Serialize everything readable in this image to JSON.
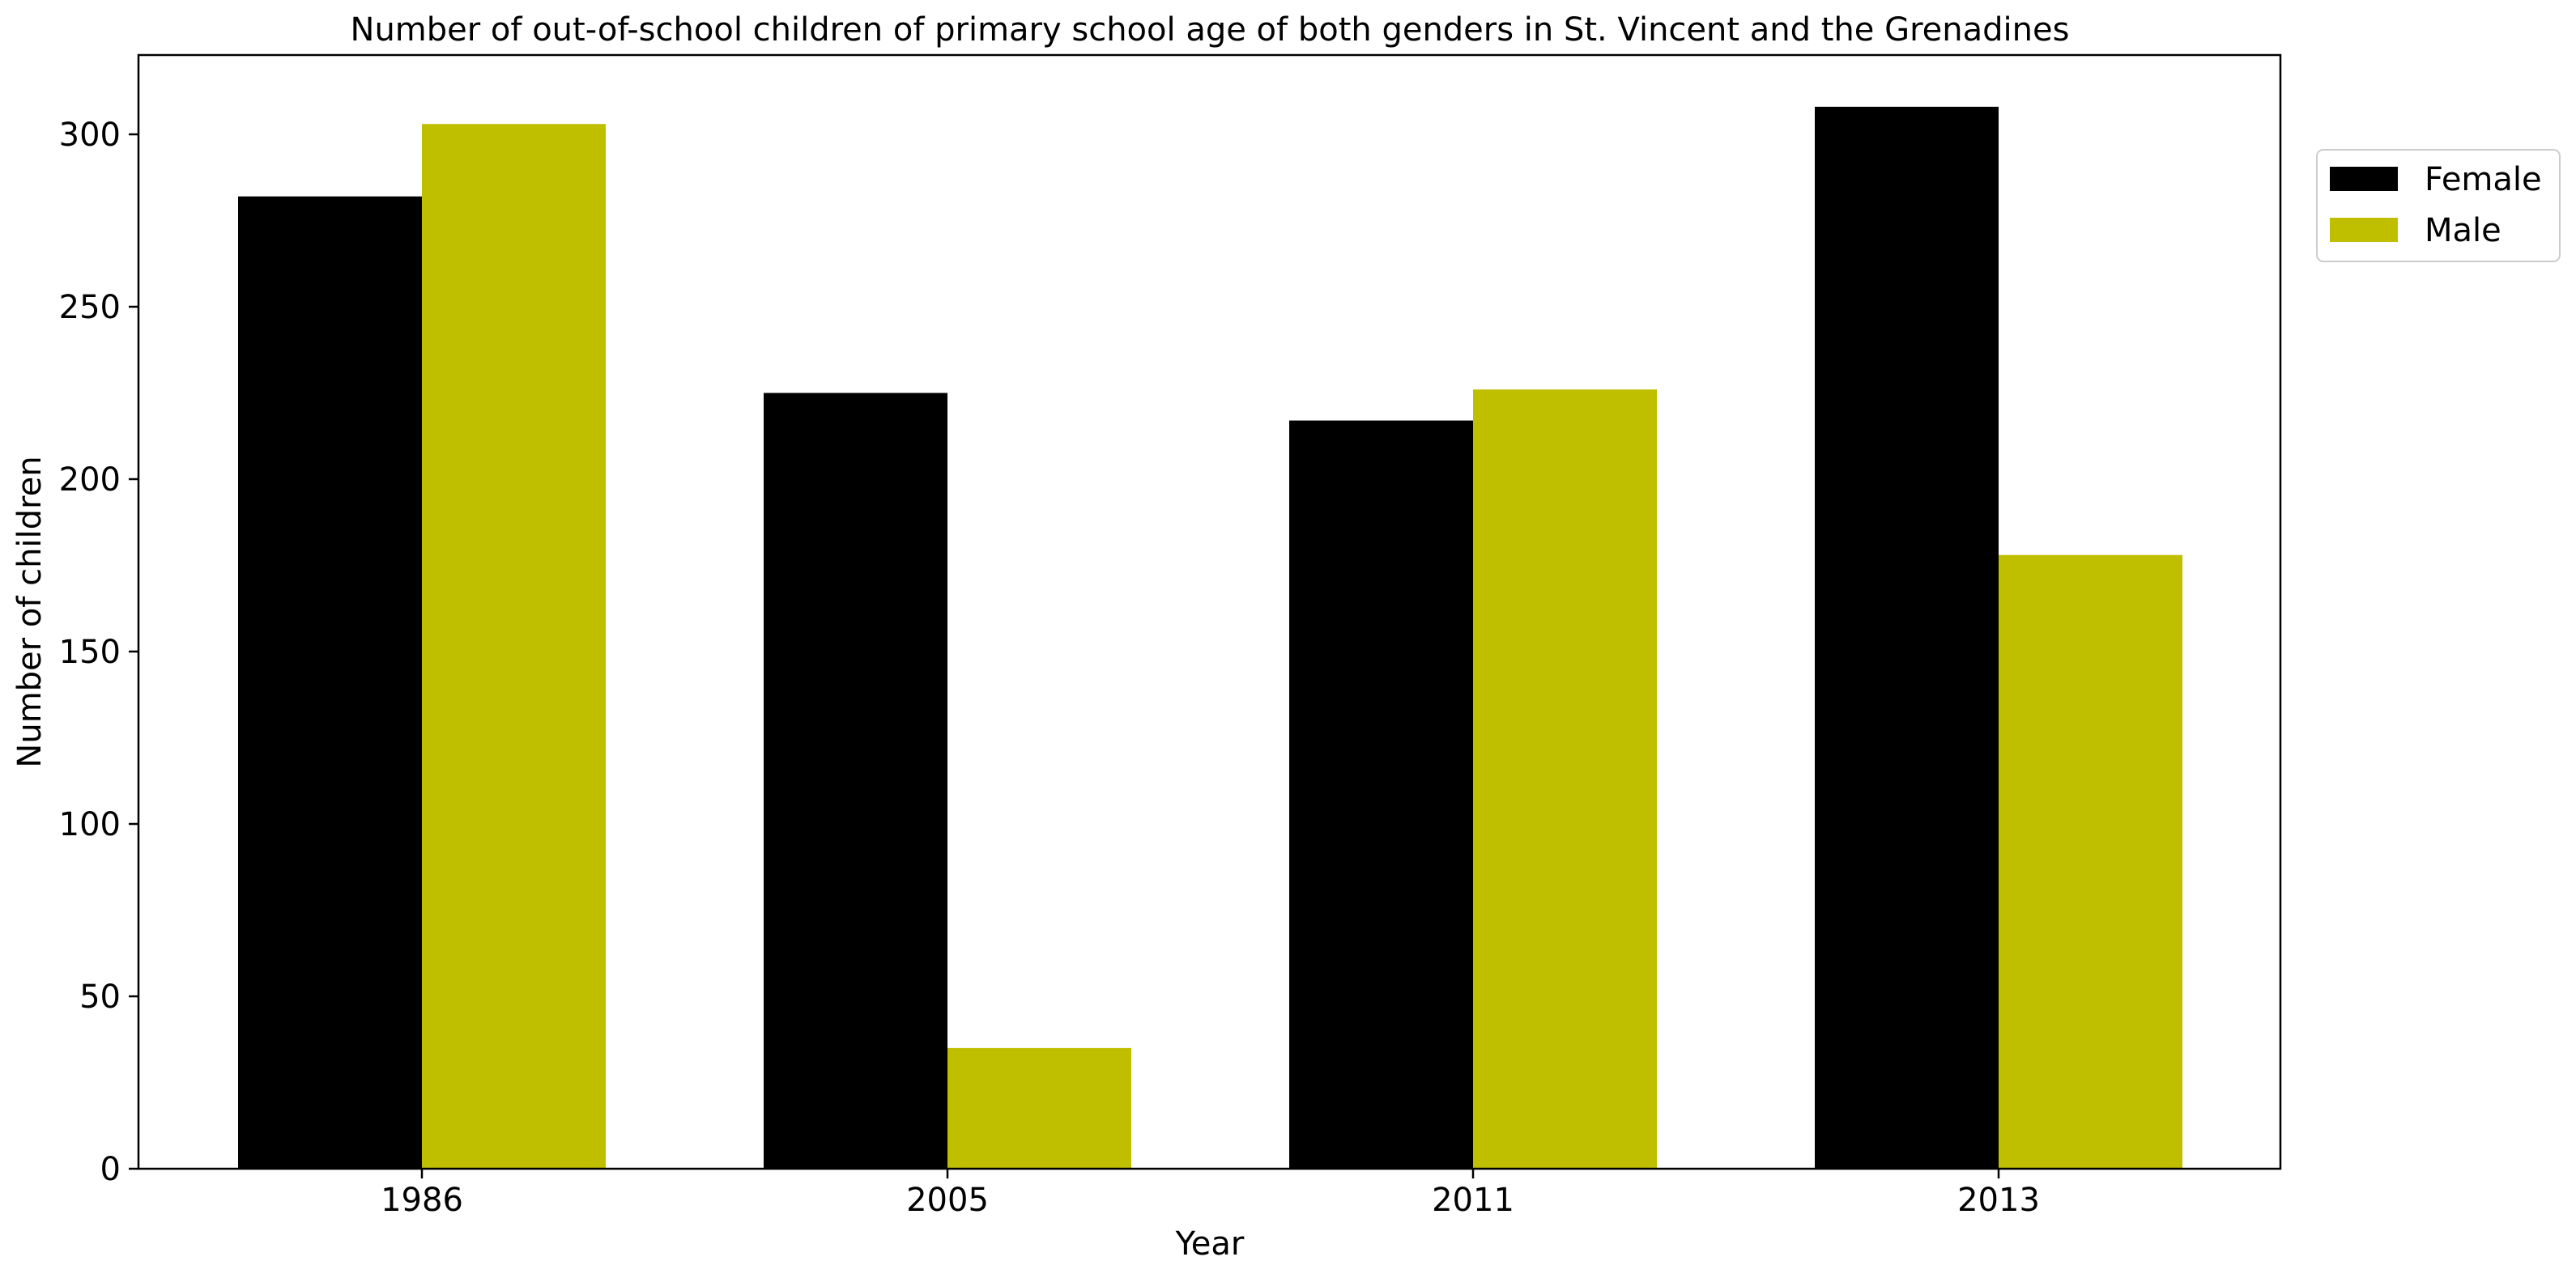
{
  "chart_data": {
    "type": "bar",
    "title": "Number of out-of-school children of primary school age of both genders in St. Vincent and the Grenadines",
    "xlabel": "Year",
    "ylabel": "Number of children",
    "categories": [
      "1986",
      "2005",
      "2011",
      "2013"
    ],
    "series": [
      {
        "name": "Female",
        "color": "#000000",
        "values": [
          282,
          225,
          217,
          308
        ]
      },
      {
        "name": "Male",
        "color": "#bfbf00",
        "values": [
          303,
          35,
          226,
          178
        ]
      }
    ],
    "ylim": [
      0,
      323
    ],
    "yticks": [
      0,
      50,
      100,
      150,
      200,
      250,
      300
    ],
    "grid": false,
    "legend": {
      "placement": "outside-right-top"
    }
  }
}
